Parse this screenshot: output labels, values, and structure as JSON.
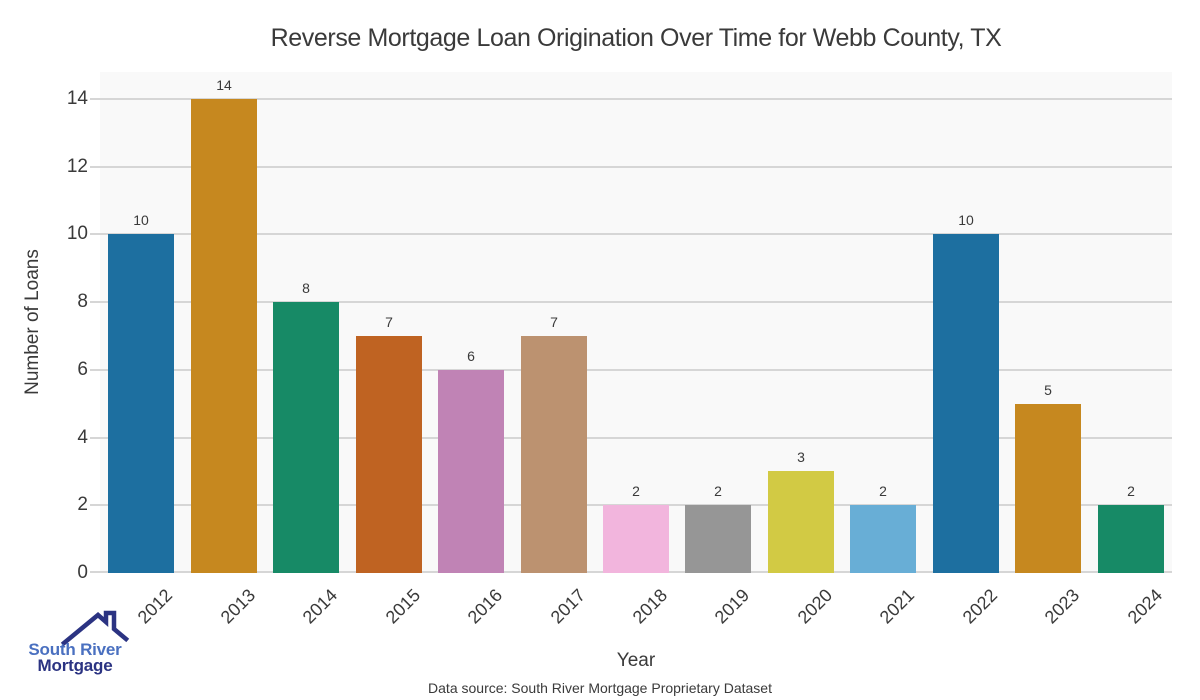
{
  "title": "Reverse Mortgage Loan Origination Over Time for Webb County, TX",
  "chart_data": {
    "type": "bar",
    "title": "Reverse Mortgage Loan Origination Over Time for Webb County, TX",
    "categories": [
      "2012",
      "2013",
      "2014",
      "2015",
      "2016",
      "2017",
      "2018",
      "2019",
      "2020",
      "2021",
      "2022",
      "2023",
      "2024"
    ],
    "values": [
      10,
      14,
      8,
      7,
      6,
      7,
      2,
      2,
      3,
      2,
      10,
      5,
      2
    ],
    "bar_colors": [
      "#1d6fa0",
      "#c6881f",
      "#178a66",
      "#bf6322",
      "#c083b5",
      "#bc9270",
      "#f2b5dd",
      "#969696",
      "#d2ca44",
      "#68aed6",
      "#1d6fa0",
      "#c6881f",
      "#178a66"
    ],
    "xlabel": "Year",
    "ylabel": "Number of Loans",
    "ylim": [
      0,
      14.8
    ],
    "yticks": [
      0,
      2,
      4,
      6,
      8,
      10,
      12,
      14
    ],
    "grid": "horizontal",
    "legend": "none",
    "plot_background": "#f9f9f9",
    "grid_color": "#d6d6d6",
    "text_color": "#3a3a3a"
  },
  "footer": {
    "data_source": "Data source: South River Mortgage Proprietary Dataset"
  },
  "logo": {
    "line1": "South River",
    "line2": "Mortgage",
    "line1_color": "#4a70c0",
    "line2_color": "#2b3382",
    "icon_color": "#2b3382",
    "icon": "house-roof-icon"
  }
}
